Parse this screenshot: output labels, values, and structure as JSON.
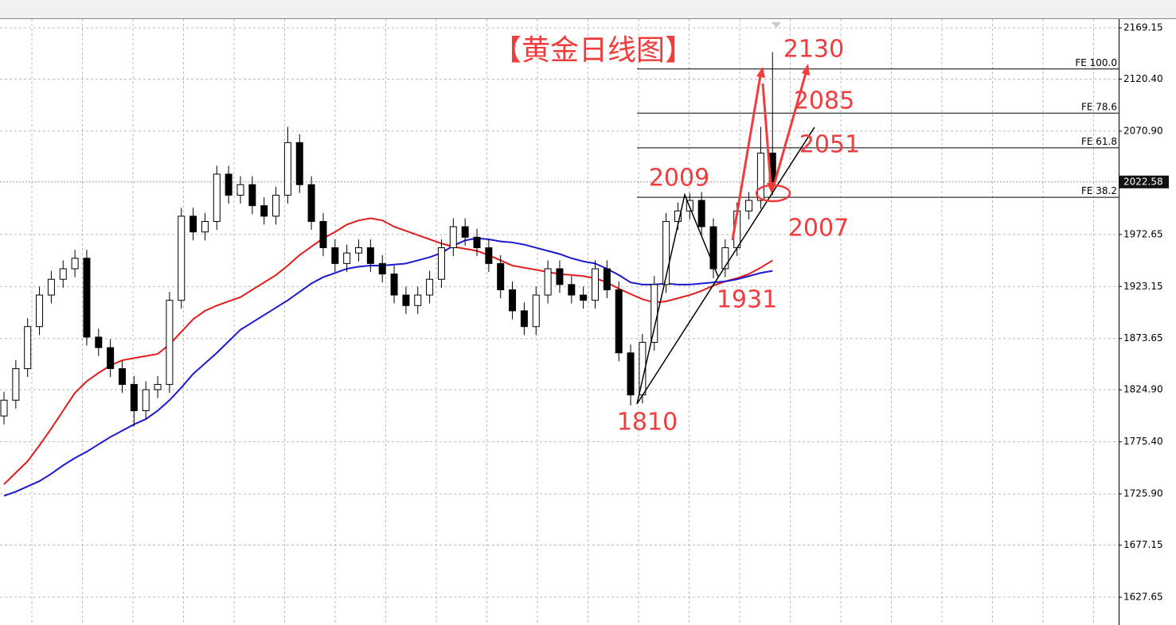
{
  "chart_data": {
    "type": "candlestick",
    "title": "【黄金日线图】",
    "ylim": [
      1627.65,
      2169.15
    ],
    "yticks": [
      2169.15,
      {
        "value": 2120.4,
        "label": "2120.40"
      },
      {
        "value": 2070.9,
        "label": "2070.90"
      },
      1972.65,
      1923.15,
      1873.65,
      {
        "value": 1824.9,
        "label": "1824.90"
      },
      {
        "value": 1775.4,
        "label": "1775.40"
      },
      {
        "value": 1725.9,
        "label": "1725.90"
      },
      1677.15,
      1627.65
    ],
    "grid": true,
    "current_price": 2022.58,
    "candles": {
      "open": [
        1800,
        1815,
        1845,
        1885,
        1915,
        1930,
        1940,
        1950,
        1875,
        1865,
        1845,
        1830,
        1805,
        1825,
        1830,
        1910,
        1990,
        1975,
        1985,
        2030,
        2010,
        2020,
        2000,
        1990,
        2010,
        2060,
        2020,
        1985,
        1960,
        1945,
        1955,
        1960,
        1945,
        1935,
        1915,
        1905,
        1915,
        1930,
        1960,
        1980,
        1970,
        1960,
        1945,
        1920,
        1900,
        1885,
        1915,
        1940,
        1925,
        1915,
        1910,
        1940,
        1920,
        1860,
        1820,
        1870,
        1925,
        1985,
        1995,
        2005,
        1980,
        1940,
        1960,
        1995,
        2005,
        2050
      ],
      "high": [
        1823,
        1853,
        1893,
        1923,
        1938,
        1948,
        1958,
        1958,
        1883,
        1873,
        1853,
        1838,
        1833,
        1838,
        1918,
        1998,
        1998,
        1993,
        2038,
        2038,
        2028,
        2028,
        2008,
        2018,
        2075,
        2068,
        2028,
        1993,
        1968,
        1963,
        1968,
        1968,
        1953,
        1943,
        1923,
        1923,
        1938,
        1968,
        1988,
        1988,
        1978,
        1968,
        1953,
        1928,
        1908,
        1923,
        1948,
        1948,
        1933,
        1923,
        1948,
        1948,
        1928,
        1868,
        1878,
        1933,
        1993,
        2003,
        2012,
        2013,
        1988,
        1968,
        2003,
        2013,
        2075,
        2146
      ],
      "low": [
        1792,
        1807,
        1837,
        1877,
        1907,
        1922,
        1932,
        1867,
        1857,
        1837,
        1822,
        1790,
        1797,
        1817,
        1822,
        1902,
        1967,
        1967,
        1977,
        2002,
        2002,
        1992,
        1982,
        1982,
        2002,
        2012,
        1977,
        1952,
        1937,
        1937,
        1947,
        1937,
        1927,
        1907,
        1897,
        1897,
        1907,
        1922,
        1952,
        1962,
        1952,
        1937,
        1912,
        1892,
        1877,
        1877,
        1907,
        1917,
        1907,
        1902,
        1902,
        1912,
        1852,
        1810,
        1812,
        1862,
        1917,
        1977,
        1987,
        1972,
        1931,
        1932,
        1952,
        1987,
        1997,
        2010
      ],
      "close": [
        1815,
        1845,
        1885,
        1915,
        1930,
        1940,
        1950,
        1875,
        1865,
        1845,
        1830,
        1805,
        1825,
        1830,
        1910,
        1990,
        1975,
        1985,
        2030,
        2010,
        2020,
        2000,
        1990,
        2010,
        2060,
        2020,
        1985,
        1960,
        1945,
        1955,
        1960,
        1945,
        1935,
        1915,
        1905,
        1915,
        1930,
        1960,
        1980,
        1970,
        1960,
        1945,
        1920,
        1900,
        1885,
        1915,
        1940,
        1925,
        1915,
        1910,
        1940,
        1920,
        1860,
        1820,
        1870,
        1925,
        1985,
        1995,
        2005,
        1980,
        1940,
        1960,
        1995,
        2005,
        2050,
        2022.58
      ]
    },
    "series": [
      {
        "color": "#e41a1a",
        "values": [
          1735,
          1746,
          1757,
          1772,
          1788,
          1805,
          1822,
          1833,
          1841,
          1848,
          1853,
          1855,
          1857,
          1859,
          1868,
          1880,
          1892,
          1900,
          1905,
          1909,
          1913,
          1920,
          1927,
          1934,
          1943,
          1953,
          1961,
          1969,
          1975,
          1982,
          1986,
          1988,
          1986,
          1980,
          1976,
          1972,
          1968,
          1964,
          1961,
          1959,
          1957,
          1953,
          1948,
          1943,
          1941,
          1939,
          1937,
          1935,
          1934,
          1933,
          1931,
          1927,
          1921,
          1916,
          1911,
          1908,
          1909,
          1912,
          1915,
          1919,
          1924,
          1928,
          1931,
          1935,
          1941,
          1948
        ]
      },
      {
        "color": "#1a1ad0",
        "values": [
          1724,
          1728,
          1733,
          1738,
          1745,
          1753,
          1760,
          1766,
          1773,
          1780,
          1786,
          1792,
          1797,
          1805,
          1815,
          1827,
          1840,
          1850,
          1860,
          1871,
          1882,
          1889,
          1896,
          1903,
          1910,
          1918,
          1926,
          1932,
          1936,
          1940,
          1942,
          1943,
          1943,
          1944,
          1945,
          1948,
          1951,
          1955,
          1962,
          1967,
          1969,
          1968,
          1966,
          1965,
          1963,
          1960,
          1957,
          1954,
          1950,
          1947,
          1945,
          1940,
          1934,
          1927,
          1925,
          1925,
          1926,
          1925,
          1925,
          1926,
          1927,
          1928,
          1930,
          1933,
          1936,
          1938
        ]
      }
    ],
    "fe_levels": [
      {
        "label": "FE 100.0",
        "value": 2130
      },
      {
        "label": "FE 78.6",
        "value": 2088
      },
      {
        "label": "FE 61.8",
        "value": 2055
      },
      {
        "label": "FE 38.2",
        "value": 2008
      }
    ],
    "annotations": [
      "2130",
      "2085",
      "2051",
      "2009",
      "2007",
      "1931",
      "1810"
    ]
  }
}
